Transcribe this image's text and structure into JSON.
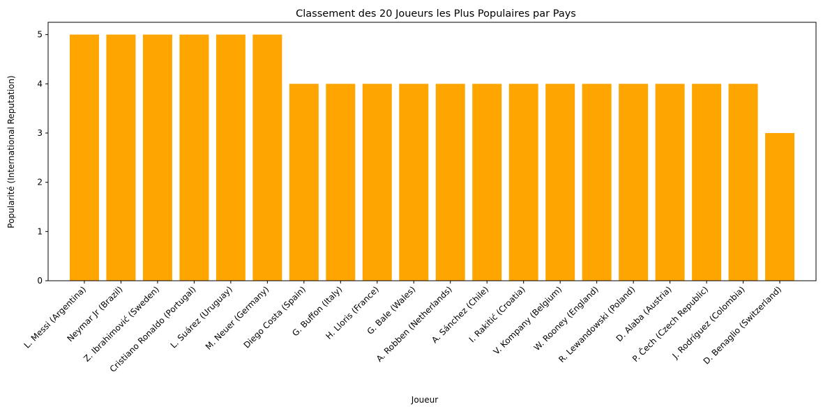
{
  "chart_data": {
    "type": "bar",
    "title": "Classement des 20 Joueurs les Plus Populaires par Pays",
    "xlabel": "Joueur",
    "ylabel": "Popularité (International Reputation)",
    "categories": [
      "L. Messi (Argentina)",
      "Neymar Jr (Brazil)",
      "Z. Ibrahimović (Sweden)",
      "Cristiano Ronaldo (Portugal)",
      "L. Suárez (Uruguay)",
      "M. Neuer (Germany)",
      "Diego Costa (Spain)",
      "G. Buffon (Italy)",
      "H. Lloris (France)",
      "G. Bale (Wales)",
      "A. Robben (Netherlands)",
      "A. Sánchez (Chile)",
      "I. Rakitić (Croatia)",
      "V. Kompany (Belgium)",
      "W. Rooney (England)",
      "R. Lewandowski (Poland)",
      "D. Alaba (Austria)",
      "P. Čech (Czech Republic)",
      "J. Rodríguez (Colombia)",
      "D. Benaglio (Switzerland)"
    ],
    "values": [
      5,
      5,
      5,
      5,
      5,
      5,
      4,
      4,
      4,
      4,
      4,
      4,
      4,
      4,
      4,
      4,
      4,
      4,
      4,
      3
    ],
    "ylim": [
      0,
      5.25
    ],
    "yticks": [
      0,
      1,
      2,
      3,
      4,
      5
    ],
    "bar_color": "#ffa500",
    "grid": false,
    "legend": "none"
  }
}
